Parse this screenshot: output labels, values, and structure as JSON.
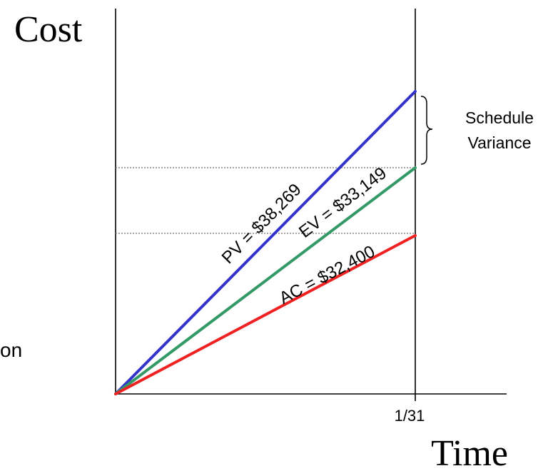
{
  "axes": {
    "y_label": "Cost",
    "x_label": "Time",
    "x_tick": "1/31"
  },
  "lines": {
    "pv": {
      "label": "PV = $38,269",
      "color": "#3333cc"
    },
    "ev": {
      "label": "EV = $33,149",
      "color": "#339966"
    },
    "ac": {
      "label": "AC = $32,400",
      "color": "#ee2222"
    }
  },
  "annotation": {
    "line1": "Schedule",
    "line2": "Variance"
  },
  "fragment_text": "on"
}
